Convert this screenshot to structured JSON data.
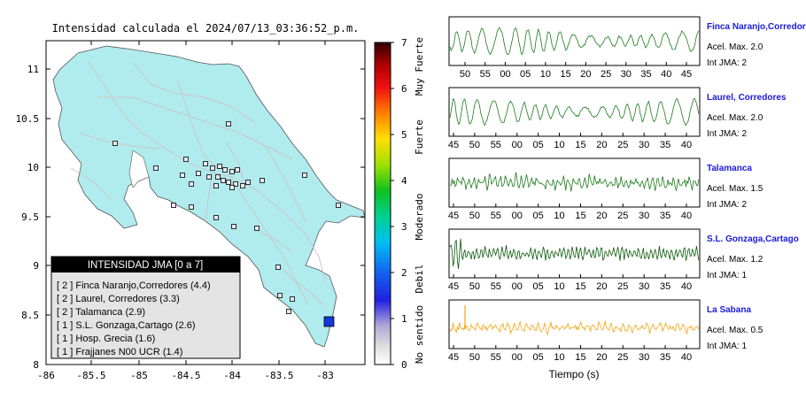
{
  "map": {
    "title": "Intensidad calculada el 2024/07/13_03:36:52_p.m.",
    "x_ticks": [
      "-86",
      "-85.5",
      "-85",
      "-84.5",
      "-84",
      "-83.5",
      "-83"
    ],
    "y_ticks": [
      "11",
      "10.5",
      "10",
      "9.5",
      "9",
      "8.5",
      "8"
    ],
    "colors": {
      "sea": "#ffffff",
      "land": "#b0ebee",
      "roads": "#c8c8c8",
      "marker_max": "#1438d8"
    },
    "legend": {
      "title": "INTENSIDAD JMA [0 a 7]",
      "items": [
        "[ 2 ]  Finca Naranjo,Corredores (4.4)",
        "[ 2 ]  Laurel, Corredores (3.3)",
        "[ 2 ]  Talamanca (2.9)",
        "[ 1 ]  S.L. Gonzaga,Cartago (2.6)",
        "[ 1 ]  Hosp. Grecia (1.6)",
        "[ 1 ]  Frajjanes N00 UCR (1.4)"
      ]
    }
  },
  "colorbar": {
    "ticks": [
      "7",
      "6",
      "5",
      "4",
      "3",
      "2",
      "1",
      "0"
    ],
    "labels": [
      "Muy Fuerte",
      "Fuerte",
      "Moderado",
      "Debil",
      "No sentido"
    ]
  },
  "waveforms": {
    "xlabel": "Tiempo (s)",
    "panels": [
      {
        "name": "Finca Naranjo,Corredor",
        "acel": "Acel. Max. 2.0",
        "int": "Int JMA: 2",
        "ticks": [
          "50",
          "55",
          "00",
          "05",
          "10",
          "15",
          "20",
          "25",
          "30",
          "35",
          "40",
          "45"
        ],
        "color": "#1a7a1a"
      },
      {
        "name": "Laurel, Corredores",
        "acel": "Acel. Max. 2.0",
        "int": "Int JMA: 2",
        "ticks": [
          "45",
          "50",
          "55",
          "00",
          "05",
          "10",
          "15",
          "20",
          "25",
          "30",
          "35",
          "40"
        ],
        "color": "#1a7a1a"
      },
      {
        "name": "Talamanca",
        "acel": "Acel. Max. 1.5",
        "int": "Int JMA: 2",
        "ticks": [
          "45",
          "50",
          "55",
          "00",
          "05",
          "10",
          "15",
          "20",
          "25",
          "30",
          "35",
          "40"
        ],
        "color": "#1a7a1a"
      },
      {
        "name": "S.L. Gonzaga,Cartago",
        "acel": "Acel. Max. 1.2",
        "int": "Int JMA: 1",
        "ticks": [
          "45",
          "50",
          "55",
          "00",
          "05",
          "10",
          "15",
          "20",
          "25",
          "30",
          "35",
          "40"
        ],
        "color": "#0a5a0a"
      },
      {
        "name": "La Sabana",
        "acel": "Acel. Max. 0.5",
        "int": "Int JMA: 1",
        "ticks": [
          "45",
          "50",
          "55",
          "00",
          "05",
          "10",
          "15",
          "20",
          "25",
          "30",
          "35",
          "40"
        ],
        "color": "#f2a20c"
      }
    ]
  }
}
